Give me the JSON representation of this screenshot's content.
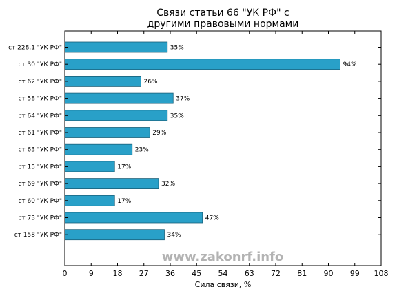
{
  "chart_data": {
    "type": "bar",
    "orientation": "horizontal",
    "title_lines": [
      "Связи статьи 66 \"УК РФ\" с",
      "другими правовыми нормами"
    ],
    "xlabel": "Сила связи, %",
    "ylabel": "",
    "xlim": [
      0,
      108
    ],
    "xticks": [
      0,
      9,
      18,
      27,
      36,
      45,
      54,
      63,
      72,
      81,
      90,
      99,
      108
    ],
    "categories": [
      "ст 228.1 \"УК РФ\"",
      "ст 30 \"УК РФ\"",
      "ст 62 \"УК РФ\"",
      "ст 58 \"УК РФ\"",
      "ст 64 \"УК РФ\"",
      "ст 61 \"УК РФ\"",
      "ст 63 \"УК РФ\"",
      "ст 15 \"УК РФ\"",
      "ст 69 \"УК РФ\"",
      "ст 60 \"УК РФ\"",
      "ст 73 \"УК РФ\"",
      "ст 158 \"УК РФ\""
    ],
    "values": [
      35,
      94,
      26,
      37,
      35,
      29,
      23,
      17,
      32,
      17,
      47,
      34
    ],
    "data_labels": [
      "35%",
      "94%",
      "26%",
      "37%",
      "35%",
      "29%",
      "23%",
      "17%",
      "32%",
      "17%",
      "47%",
      "34%"
    ],
    "bar_color": "#29a0c8",
    "bar_edge_color": "#1a5f78",
    "grid": false,
    "legend": "none"
  },
  "watermark": "www.zakonrf.info"
}
